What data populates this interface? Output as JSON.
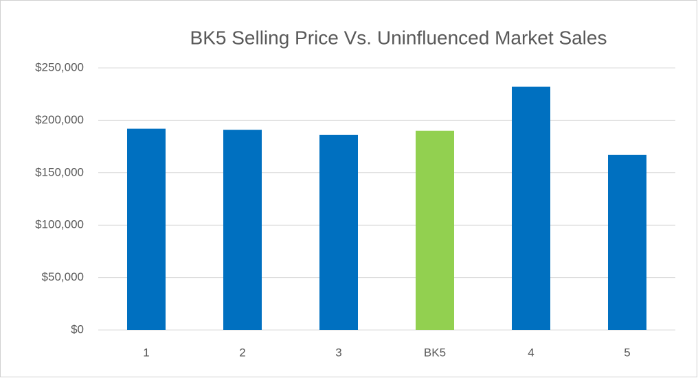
{
  "chart_data": {
    "type": "bar",
    "title": "BK5 Selling Price Vs. Uninfluenced Market Sales",
    "categories": [
      "1",
      "2",
      "3",
      "BK5",
      "4",
      "5"
    ],
    "values": [
      192000,
      191000,
      186000,
      190000,
      232000,
      167000
    ],
    "colors": [
      "#0070c0",
      "#0070c0",
      "#0070c0",
      "#92d050",
      "#0070c0",
      "#0070c0"
    ],
    "ylim": [
      0,
      250000
    ],
    "yticks": [
      {
        "value": 0,
        "label": "$0"
      },
      {
        "value": 50000,
        "label": "$50,000"
      },
      {
        "value": 100000,
        "label": "$100,000"
      },
      {
        "value": 150000,
        "label": "$150,000"
      },
      {
        "value": 200000,
        "label": "$200,000"
      },
      {
        "value": 250000,
        "label": "$250,000"
      }
    ],
    "grid": true
  }
}
